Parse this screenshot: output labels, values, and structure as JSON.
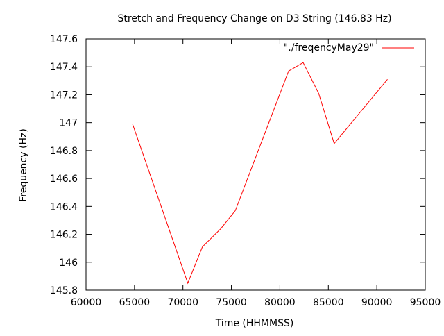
{
  "chart_data": {
    "type": "line",
    "title": "Stretch and Frequency Change on D3 String (146.83 Hz)",
    "xlabel": "Time (HHMMSS)",
    "ylabel": "Frequency (Hz)",
    "xlim": [
      60000,
      95000
    ],
    "ylim": [
      145.8,
      147.6
    ],
    "xticks": [
      "60000",
      "65000",
      "70000",
      "75000",
      "80000",
      "85000",
      "90000",
      "95000"
    ],
    "yticks": [
      "145.8",
      "146",
      "146.2",
      "146.4",
      "146.6",
      "146.8",
      "147",
      "147.2",
      "147.4",
      "147.6"
    ],
    "grid": false,
    "legend_position": "top-right",
    "series": [
      {
        "name": "\"./freqencyMay29\"",
        "color": "#ff0000",
        "x": [
          64800,
          70500,
          72000,
          73900,
          75400,
          80900,
          82400,
          84000,
          85600,
          91100
        ],
        "y": [
          146.99,
          145.85,
          146.11,
          146.24,
          146.37,
          147.37,
          147.43,
          147.21,
          146.85,
          147.31
        ]
      }
    ]
  }
}
